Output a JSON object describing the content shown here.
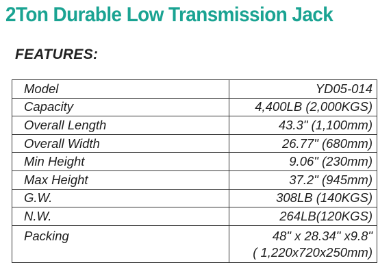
{
  "title": "2Ton Durable Low Transmission Jack",
  "section_heading": "FEATURES:",
  "specs": [
    {
      "label": "Model",
      "value": "YD05-014"
    },
    {
      "label": "Capacity",
      "value": "4,400LB (2,000KGS)"
    },
    {
      "label": "Overall Length",
      "value": "43.3\" (1,100mm)"
    },
    {
      "label": "Overall Width",
      "value": "26.77\" (680mm)"
    },
    {
      "label": "Min Height",
      "value": "9.06\" (230mm)"
    },
    {
      "label": "Max Height",
      "value": "37.2\" (945mm)"
    },
    {
      "label": "G.W.",
      "value": "308LB (140KGS)"
    },
    {
      "label": "N.W.",
      "value": "264LB(120KGS)"
    },
    {
      "label": "Packing",
      "value": "48\" x 28.34\" x9.8\"",
      "value_line2": "( 1,220x720x250mm)"
    }
  ],
  "colors": {
    "title": "#1aa392",
    "text": "#1c1c1c",
    "border": "#333333"
  }
}
